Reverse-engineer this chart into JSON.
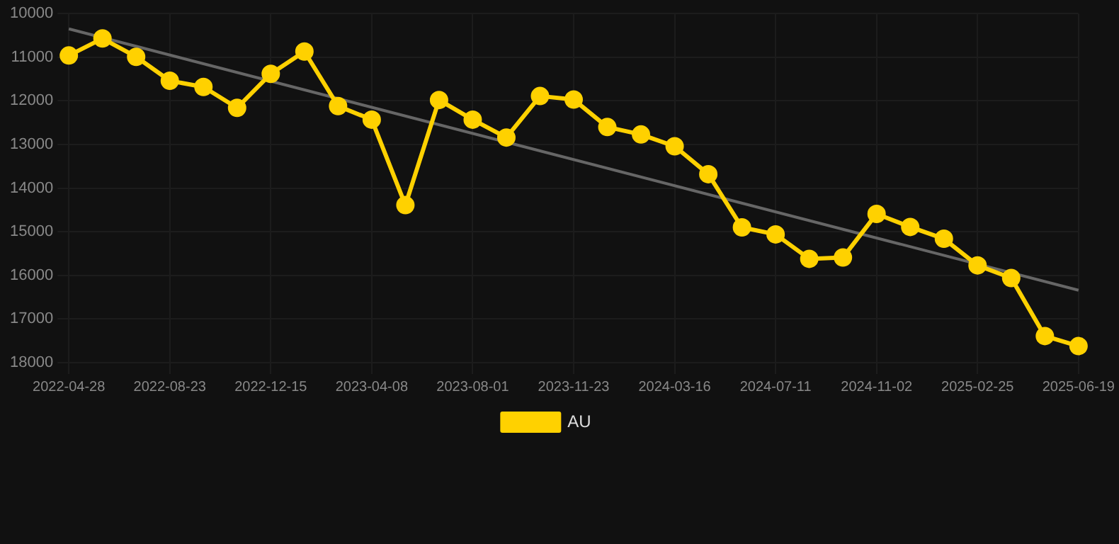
{
  "chart_data": {
    "type": "line",
    "categories": [
      "2022-04-28",
      null,
      null,
      "2022-08-23",
      null,
      null,
      "2022-12-15",
      null,
      null,
      "2023-04-08",
      null,
      null,
      "2023-08-01",
      null,
      null,
      "2023-11-23",
      null,
      null,
      "2024-03-16",
      null,
      null,
      "2024-07-11",
      null,
      null,
      "2024-11-02",
      null,
      null,
      "2025-02-25",
      null,
      null,
      "2025-06-19"
    ],
    "series": [
      {
        "name": "AU",
        "color": "#ffd100",
        "values": [
          10960,
          10570,
          10990,
          11540,
          11680,
          12160,
          11380,
          10870,
          12120,
          12430,
          14390,
          11980,
          12430,
          12840,
          11890,
          11970,
          12600,
          12770,
          13040,
          13680,
          14900,
          15060,
          15620,
          15590,
          14590,
          14890,
          15160,
          15770,
          16060,
          17390,
          17620
        ]
      },
      {
        "type": "line",
        "color": "#666666",
        "values": [
          10350,
          null,
          null,
          null,
          null,
          null,
          null,
          null,
          null,
          null,
          null,
          null,
          null,
          null,
          null,
          null,
          null,
          null,
          null,
          null,
          null,
          null,
          null,
          null,
          null,
          null,
          null,
          null,
          null,
          null,
          16340
        ],
        "marker": "none"
      }
    ],
    "ylim": [
      18000,
      10000
    ],
    "yticks": [
      10000,
      11000,
      12000,
      13000,
      14000,
      15000,
      16000,
      17000,
      18000
    ],
    "grid": true,
    "legend": "bottom",
    "marker": "circle",
    "line_style": "solid"
  }
}
